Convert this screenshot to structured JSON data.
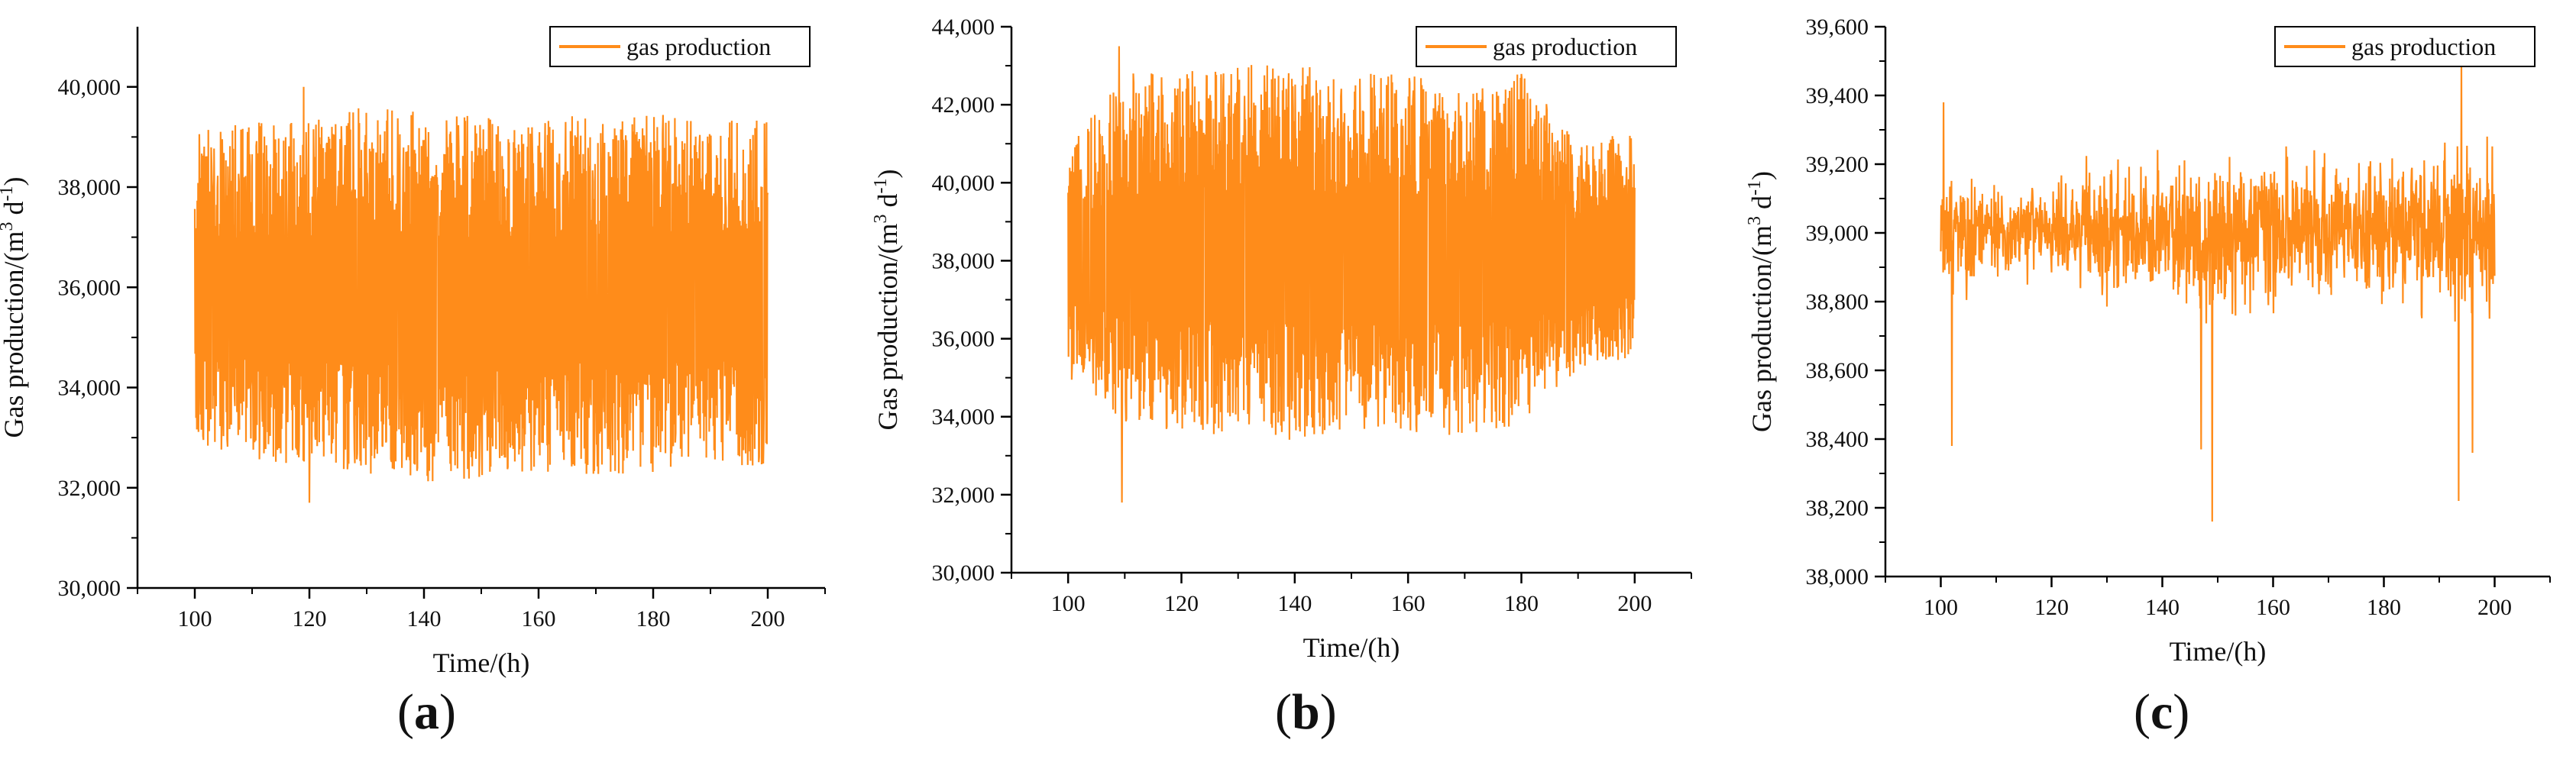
{
  "colors": {
    "series": "#ff8c1a",
    "axis": "#000000",
    "text": "#111111"
  },
  "chart_data": [
    {
      "id": "a",
      "panel_label": "a",
      "type": "line",
      "xlabel": "Time/(h)",
      "ylabel": "Gas production/(m",
      "ylabel_sup1": "3",
      "ylabel_mid": " d",
      "ylabel_sup2": "-1",
      "ylabel_end": ")",
      "xlim": [
        90,
        210
      ],
      "ylim": [
        30000,
        41200
      ],
      "xticks": [
        100,
        120,
        140,
        160,
        180,
        200
      ],
      "xtick_labels": [
        "100",
        "120",
        "140",
        "160",
        "180",
        "200"
      ],
      "yticks": [
        30000,
        32000,
        34000,
        36000,
        38000,
        40000
      ],
      "ytick_labels": [
        "30,000",
        "32,000",
        "34,000",
        "36,000",
        "38,000",
        "40,000"
      ],
      "legend": {
        "label": "gas production",
        "placement": "top-right"
      },
      "series": [
        {
          "name": "gas production",
          "x_range": [
            100,
            200
          ],
          "pattern": "oscillating",
          "mean": 35700,
          "envelope_high": [
            39100,
            39300,
            39400,
            39600,
            39500,
            39400,
            39300,
            39500,
            39500,
            39300,
            39400
          ],
          "envelope_low": [
            32900,
            32600,
            32300,
            32200,
            32100,
            32200,
            32300,
            32200,
            32300,
            32500,
            32400
          ],
          "peak_max": 40000,
          "trough_min": 31700
        }
      ]
    },
    {
      "id": "b",
      "panel_label": "b",
      "type": "line",
      "xlabel": "Time/(h)",
      "ylabel": "Gas production/(m",
      "ylabel_sup1": "3",
      "ylabel_mid": " d",
      "ylabel_sup2": "-1",
      "ylabel_end": ")",
      "xlim": [
        90,
        210
      ],
      "ylim": [
        30000,
        44000
      ],
      "xticks": [
        100,
        120,
        140,
        160,
        180,
        200
      ],
      "xtick_labels": [
        "100",
        "120",
        "140",
        "160",
        "180",
        "200"
      ],
      "yticks": [
        30000,
        32000,
        34000,
        36000,
        38000,
        40000,
        42000,
        44000
      ],
      "ytick_labels": [
        "30,000",
        "32,000",
        "34,000",
        "36,000",
        "38,000",
        "40,000",
        "42,000",
        "44,000"
      ],
      "legend": {
        "label": "gas production",
        "placement": "top-right"
      },
      "series": [
        {
          "name": "gas production",
          "x_range": [
            100,
            200
          ],
          "pattern": "oscillating",
          "mean": 38000,
          "envelope_high": [
            41000,
            42800,
            42900,
            43000,
            43100,
            42900,
            42800,
            42400,
            42900,
            41000,
            41500
          ],
          "envelope_low": [
            35000,
            33800,
            33600,
            33500,
            33400,
            33700,
            33500,
            33500,
            33800,
            35200,
            35500
          ],
          "peak_max": 43500,
          "trough_min": 31800
        }
      ]
    },
    {
      "id": "c",
      "panel_label": "c",
      "type": "line",
      "xlabel": "Time/(h)",
      "ylabel": "Gas production/(m",
      "ylabel_sup1": "3",
      "ylabel_mid": " d",
      "ylabel_sup2": "-1",
      "ylabel_end": ")",
      "xlim": [
        90,
        210
      ],
      "ylim": [
        38000,
        39600
      ],
      "xticks": [
        100,
        120,
        140,
        160,
        180,
        200
      ],
      "xtick_labels": [
        "100",
        "120",
        "140",
        "160",
        "180",
        "200"
      ],
      "yticks": [
        38000,
        38200,
        38400,
        38600,
        38800,
        39000,
        39200,
        39400,
        39600
      ],
      "ytick_labels": [
        "38,000",
        "38,200",
        "38,400",
        "38,600",
        "38,800",
        "39,000",
        "39,200",
        "39,400",
        "39,600"
      ],
      "legend": {
        "label": "gas production",
        "placement": "top-right"
      },
      "series": [
        {
          "name": "gas production",
          "x_range": [
            100,
            200
          ],
          "pattern": "noisy",
          "mean": 39010,
          "envelope_high": [
            39300,
            39150,
            39150,
            39200,
            39250,
            39300,
            39300,
            39250,
            39250,
            39300,
            39300
          ],
          "envelope_low": [
            38800,
            38850,
            38800,
            38750,
            38750,
            38700,
            38750,
            38750,
            38750,
            38700,
            38750
          ],
          "peak_max": 39500,
          "trough_min": 38160
        }
      ]
    }
  ]
}
